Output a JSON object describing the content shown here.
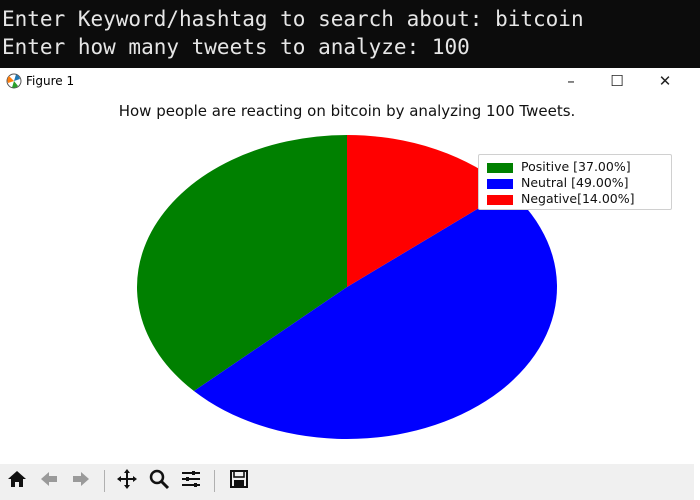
{
  "terminal": {
    "lines": [
      "Enter Keyword/hashtag to search about: bitcoin",
      "Enter how many tweets to analyze: 100"
    ]
  },
  "window": {
    "title": "Figure 1",
    "minimize_glyph": "–",
    "maximize_glyph": "☐",
    "close_glyph": "✕"
  },
  "chart_data": {
    "type": "pie",
    "title": "How people are reacting on bitcoin by analyzing 100 Tweets.",
    "labels": [
      "Positive [37.00%]",
      "Neutral [49.00%]",
      "Negative[14.00%]"
    ],
    "values": [
      37,
      49,
      14
    ],
    "colors": [
      "#008000",
      "#0000ff",
      "#ff0000"
    ],
    "start_angle_deg": 90,
    "direction": "counterclockwise",
    "legend_position": "top-right"
  },
  "toolbar": {
    "icons": [
      "home-icon",
      "back-arrow-icon",
      "forward-arrow-icon",
      "pan-icon",
      "zoom-icon",
      "configure-subplots-icon",
      "save-icon"
    ]
  }
}
